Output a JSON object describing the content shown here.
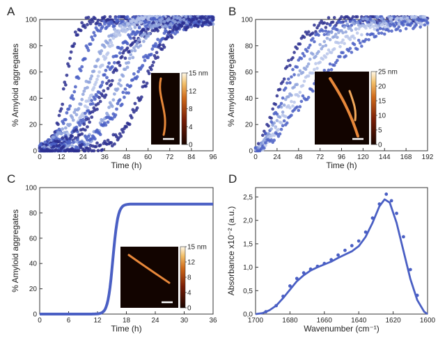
{
  "colors": {
    "dark": "#2b2f8f",
    "mid": "#4a5fc4",
    "light": "#8fa3dc",
    "pale": "#b9c6ea",
    "axis": "#333333"
  },
  "chart_data": [
    {
      "panel": "A",
      "type": "scatter",
      "ylabel": "% Amyloid aggregates",
      "xlabel": "Time (h)",
      "xlim": [
        0,
        96
      ],
      "ylim": [
        0,
        100
      ],
      "xticks": [
        0,
        12,
        24,
        36,
        48,
        60,
        72,
        84,
        96
      ],
      "yticks": [
        0,
        20,
        40,
        60,
        80,
        100
      ],
      "series_t50": [
        14,
        20,
        26,
        30,
        34,
        38,
        44,
        50,
        58
      ],
      "series_k": [
        0.32,
        0.2,
        0.14,
        0.16,
        0.12,
        0.11,
        0.14,
        0.1,
        0.14
      ],
      "inset": {
        "type": "colorbar",
        "ticks": [
          "15 nm",
          "12",
          "8",
          "4",
          "0"
        ]
      }
    },
    {
      "panel": "B",
      "type": "scatter",
      "ylabel": "% Amyloid aggregates",
      "xlabel": "Time (h)",
      "xlim": [
        0,
        192
      ],
      "ylim": [
        0,
        100
      ],
      "xticks": [
        0,
        24,
        48,
        72,
        96,
        120,
        144,
        168,
        192
      ],
      "yticks": [
        0,
        20,
        40,
        60,
        80,
        100
      ],
      "series_tau": [
        22,
        28,
        34,
        42,
        52
      ],
      "inset": {
        "type": "colorbar",
        "ticks": [
          "25 nm",
          "20",
          "15",
          "10",
          "5",
          "0"
        ]
      }
    },
    {
      "panel": "C",
      "type": "line",
      "ylabel": "% Amyloid aggregates",
      "xlabel": "Time (h)",
      "xlim": [
        0,
        36
      ],
      "ylim": [
        0,
        100
      ],
      "xticks": [
        0,
        6,
        12,
        18,
        24,
        30,
        36
      ],
      "yticks": [
        0,
        20,
        40,
        60,
        80,
        100
      ],
      "fit": {
        "plateau": 87,
        "t50": 15.2,
        "k": 1.9
      },
      "inset": {
        "type": "colorbar",
        "ticks": [
          "15 nm",
          "12",
          "8",
          "4",
          "0"
        ]
      }
    },
    {
      "panel": "D",
      "type": "line",
      "ylabel": "Absorbance x10⁻² (a.u.)",
      "xlabel": "Wavenumber (cm⁻¹)",
      "xlim": [
        1700,
        1600
      ],
      "ylim": [
        0,
        2.7
      ],
      "xticks": [
        1700,
        1680,
        1660,
        1640,
        1620,
        1600
      ],
      "yticks": [
        0.0,
        0.5,
        1.0,
        1.5,
        2.0,
        2.5
      ],
      "ytick_labels": [
        "0,0",
        "0,5",
        "1,0",
        "1,5",
        "2,0",
        "2,5"
      ],
      "line": [
        [
          1700,
          0.0
        ],
        [
          1696,
          0.02
        ],
        [
          1692,
          0.08
        ],
        [
          1688,
          0.18
        ],
        [
          1684,
          0.34
        ],
        [
          1680,
          0.52
        ],
        [
          1676,
          0.7
        ],
        [
          1672,
          0.83
        ],
        [
          1668,
          0.93
        ],
        [
          1664,
          1.0
        ],
        [
          1660,
          1.06
        ],
        [
          1656,
          1.12
        ],
        [
          1652,
          1.2
        ],
        [
          1648,
          1.27
        ],
        [
          1644,
          1.34
        ],
        [
          1640,
          1.45
        ],
        [
          1636,
          1.65
        ],
        [
          1632,
          1.95
        ],
        [
          1628,
          2.3
        ],
        [
          1625,
          2.45
        ],
        [
          1622,
          2.38
        ],
        [
          1618,
          1.95
        ],
        [
          1614,
          1.35
        ],
        [
          1610,
          0.75
        ],
        [
          1606,
          0.3
        ],
        [
          1602,
          0.05
        ],
        [
          1600,
          0.0
        ]
      ],
      "points": [
        [
          1694,
          0.05
        ],
        [
          1688,
          0.18
        ],
        [
          1684,
          0.38
        ],
        [
          1680,
          0.6
        ],
        [
          1676,
          0.76
        ],
        [
          1672,
          0.88
        ],
        [
          1668,
          0.96
        ],
        [
          1664,
          1.02
        ],
        [
          1660,
          1.08
        ],
        [
          1656,
          1.16
        ],
        [
          1652,
          1.26
        ],
        [
          1648,
          1.36
        ],
        [
          1644,
          1.46
        ],
        [
          1640,
          1.56
        ],
        [
          1636,
          1.75
        ],
        [
          1632,
          2.05
        ],
        [
          1628,
          2.35
        ],
        [
          1624,
          2.56
        ],
        [
          1621,
          2.42
        ],
        [
          1618,
          2.15
        ],
        [
          1614,
          1.65
        ],
        [
          1610,
          0.95
        ],
        [
          1606,
          0.4
        ]
      ]
    }
  ],
  "panels": [
    {
      "letter": "A"
    },
    {
      "letter": "B"
    },
    {
      "letter": "C"
    },
    {
      "letter": "D"
    }
  ]
}
